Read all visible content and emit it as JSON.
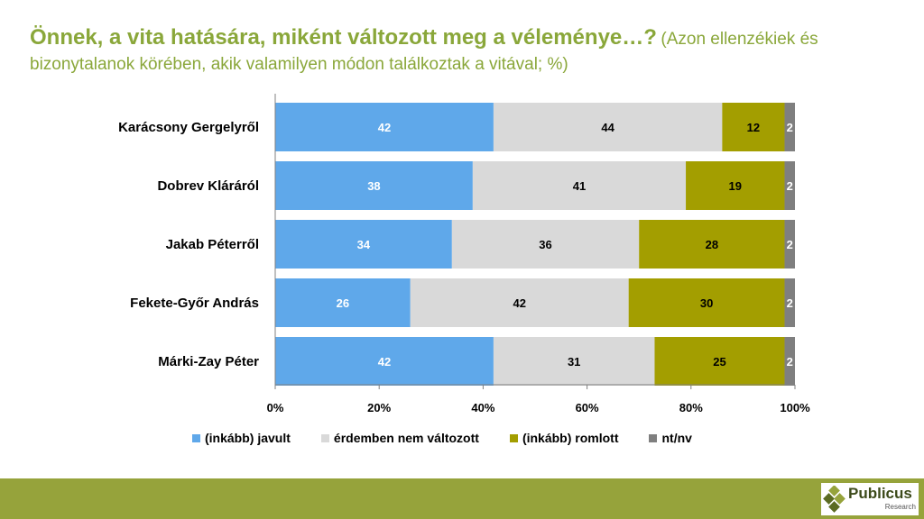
{
  "title": {
    "main": "Önnek, a vita hatására, miként változott meg a véleménye…?",
    "sub": "(Azon ellenzékiek és bizonytalanok körében, akik valamilyen módon találkoztak a vitával; %)"
  },
  "chart_data": {
    "type": "bar",
    "orientation": "horizontal",
    "stacked": "percent",
    "categories": [
      "Karácsony Gergelyről",
      "Dobrev Kláráról",
      "Jakab Péterről",
      "Fekete-Győr András",
      "Márki-Zay Péter"
    ],
    "series": [
      {
        "name": "(inkább) javult",
        "values": [
          42,
          38,
          34,
          26,
          42
        ],
        "color": "#5fa8ea",
        "label_color": "#ffffff"
      },
      {
        "name": "érdemben nem változott",
        "values": [
          44,
          41,
          36,
          42,
          31
        ],
        "color": "#d9d9d9",
        "label_color": "#000000"
      },
      {
        "name": "(inkább) romlott",
        "values": [
          12,
          19,
          28,
          30,
          25
        ],
        "color": "#a39e00",
        "label_color": "#000000"
      },
      {
        "name": "nt/nv",
        "values": [
          2,
          2,
          2,
          2,
          2
        ],
        "color": "#7f7f7f",
        "label_color": "#ffffff"
      }
    ],
    "x_ticks": [
      "0%",
      "20%",
      "40%",
      "60%",
      "80%",
      "100%"
    ],
    "xlim": [
      0,
      100
    ],
    "legend_position": "bottom",
    "xlabel": "",
    "ylabel": ""
  },
  "footer": {
    "brand": "Publicus",
    "brand_sub": "Research",
    "bar_color": "#96a33b"
  }
}
